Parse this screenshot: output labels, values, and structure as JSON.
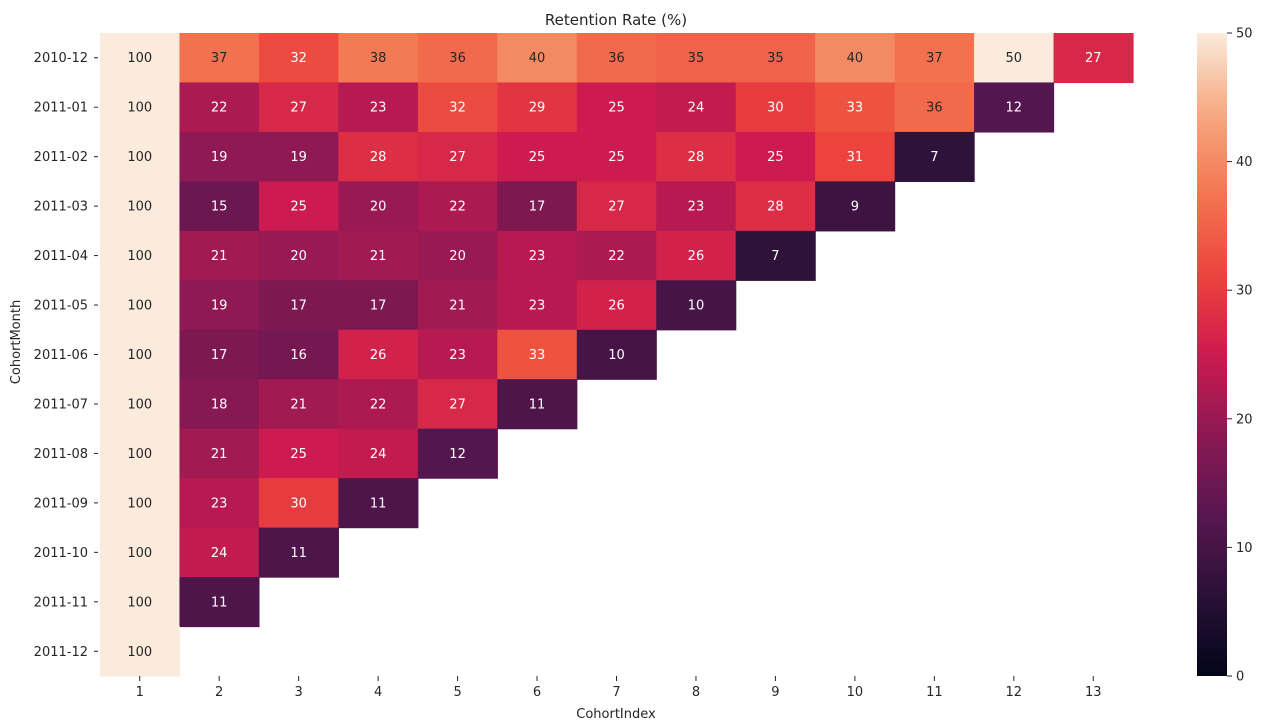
{
  "chart_data": {
    "type": "heatmap",
    "title": "Retention Rate (%)",
    "xlabel": "CohortIndex",
    "ylabel": "CohortMonth",
    "x_categories": [
      "1",
      "2",
      "3",
      "4",
      "5",
      "6",
      "7",
      "8",
      "9",
      "10",
      "11",
      "12",
      "13"
    ],
    "y_categories": [
      "2010-12",
      "2011-01",
      "2011-02",
      "2011-03",
      "2011-04",
      "2011-05",
      "2011-06",
      "2011-07",
      "2011-08",
      "2011-09",
      "2011-10",
      "2011-11",
      "2011-12"
    ],
    "values": [
      [
        100,
        37,
        32,
        38,
        36,
        40,
        36,
        35,
        35,
        40,
        37,
        50,
        27
      ],
      [
        100,
        22,
        27,
        23,
        32,
        29,
        25,
        24,
        30,
        33,
        36,
        12,
        null
      ],
      [
        100,
        19,
        19,
        28,
        27,
        25,
        25,
        28,
        25,
        31,
        7,
        null,
        null
      ],
      [
        100,
        15,
        25,
        20,
        22,
        17,
        27,
        23,
        28,
        9,
        null,
        null,
        null
      ],
      [
        100,
        21,
        20,
        21,
        20,
        23,
        22,
        26,
        7,
        null,
        null,
        null,
        null
      ],
      [
        100,
        19,
        17,
        17,
        21,
        23,
        26,
        10,
        null,
        null,
        null,
        null,
        null
      ],
      [
        100,
        17,
        16,
        26,
        23,
        33,
        10,
        null,
        null,
        null,
        null,
        null,
        null
      ],
      [
        100,
        18,
        21,
        22,
        27,
        11,
        null,
        null,
        null,
        null,
        null,
        null,
        null
      ],
      [
        100,
        21,
        25,
        24,
        12,
        null,
        null,
        null,
        null,
        null,
        null,
        null,
        null
      ],
      [
        100,
        23,
        30,
        11,
        null,
        null,
        null,
        null,
        null,
        null,
        null,
        null,
        null
      ],
      [
        100,
        24,
        11,
        null,
        null,
        null,
        null,
        null,
        null,
        null,
        null,
        null,
        null
      ],
      [
        100,
        11,
        null,
        null,
        null,
        null,
        null,
        null,
        null,
        null,
        null,
        null,
        null
      ],
      [
        100,
        null,
        null,
        null,
        null,
        null,
        null,
        null,
        null,
        null,
        null,
        null,
        null
      ]
    ],
    "colorscale": "rocket",
    "vmin": 0,
    "vmax": 50,
    "colorbar_ticks": [
      0,
      10,
      20,
      30,
      40,
      50
    ]
  }
}
